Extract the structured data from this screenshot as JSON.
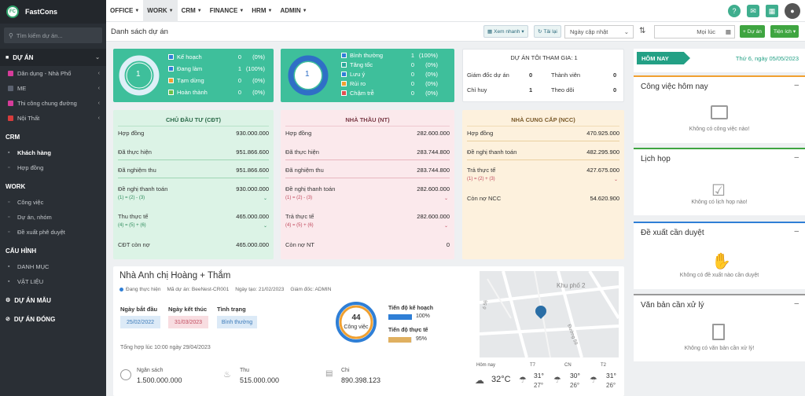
{
  "app": {
    "name": "FastCons",
    "logo": "FC"
  },
  "sidebar": {
    "search_placeholder": "Tìm kiếm dự án...",
    "sections": [
      {
        "label": "DỰ ÁN",
        "icon": "folder-icon"
      },
      {
        "label": "CRM"
      },
      {
        "label": "WORK"
      },
      {
        "label": "CẤU HÌNH"
      }
    ],
    "projects": [
      {
        "label": "Dân dụng - Nhà Phố",
        "color": "#d63c9a"
      },
      {
        "label": "ME",
        "color": "#5b6270"
      },
      {
        "label": "Thi công chung đường",
        "color": "#d63c9a"
      },
      {
        "label": "Nội Thất",
        "color": "#d63c3c"
      }
    ],
    "crm": [
      {
        "label": "Khách hàng"
      },
      {
        "label": "Hợp đồng"
      }
    ],
    "work": [
      {
        "label": "Công việc"
      },
      {
        "label": "Dự án, nhóm"
      },
      {
        "label": "Đề xuất phê duyệt"
      }
    ],
    "config": [
      {
        "label": "DANH MỤC"
      },
      {
        "label": "VẬT LIỆU"
      }
    ],
    "bottom": [
      {
        "label": "DỰ ÁN MẪU"
      },
      {
        "label": "DỰ ÁN ĐÓNG"
      }
    ]
  },
  "topmenu": [
    "OFFICE",
    "WORK",
    "CRM",
    "FINANCE",
    "HRM",
    "ADMIN"
  ],
  "subbar": {
    "title": "Danh sách dự án",
    "quick_view": "Xem nhanh",
    "reload": "Tải lại",
    "sort_select": "Ngày cập nhật",
    "time_select": "Mọi lúc",
    "add_project": "Dự án",
    "utilities": "Tiện ích"
  },
  "status1": {
    "count": "1",
    "rows": [
      {
        "label": "Kế hoạch",
        "value": "0",
        "pct": "(0%)",
        "color": "#2f7fd6"
      },
      {
        "label": "Đang làm",
        "value": "1",
        "pct": "(100%)",
        "color": "#2f7fd6"
      },
      {
        "label": "Tạm dừng",
        "value": "0",
        "pct": "(0%)",
        "color": "#f0a030"
      },
      {
        "label": "Hoàn thành",
        "value": "0",
        "pct": "(0%)",
        "color": "#6ac24a"
      }
    ]
  },
  "status2": {
    "count": "1",
    "rows": [
      {
        "label": "Bình thường",
        "value": "1",
        "pct": "(100%)",
        "color": "#2f7fd6"
      },
      {
        "label": "Tăng tốc",
        "value": "0",
        "pct": "(0%)",
        "color": "#2aa89a"
      },
      {
        "label": "Lưu ý",
        "value": "0",
        "pct": "(0%)",
        "color": "#2f7fd6"
      },
      {
        "label": "Rủi ro",
        "value": "0",
        "pct": "(0%)",
        "color": "#f0a030"
      },
      {
        "label": "Chậm trễ",
        "value": "0",
        "pct": "(0%)",
        "color": "#e05050"
      }
    ]
  },
  "participation": {
    "title": "DỰ ÁN TÔI THAM GIA: 1",
    "rows": [
      {
        "label": "Giám đốc dự án",
        "value": "0",
        "label2": "Thành viên",
        "value2": "0"
      },
      {
        "label": "Chỉ huy",
        "value": "1",
        "label2": "Theo dõi",
        "value2": "0"
      }
    ]
  },
  "cdt": {
    "title": "CHỦ ĐẦU TƯ (CĐT)",
    "rows": [
      {
        "label": "Hợp đồng",
        "value": "930.000.000"
      },
      {
        "label": "Đã thực hiện",
        "value": "951.866.600"
      },
      {
        "label": "Đã nghiệm thu",
        "value": "951.866.600"
      },
      {
        "label": "Đề nghị thanh toán",
        "value": "930.000.000",
        "formula": "(1) = (2) - (3)"
      },
      {
        "label": "Thu thực tế",
        "value": "465.000.000",
        "formula": "(4) = (5) + (6)"
      },
      {
        "label": "CĐT còn nợ",
        "value": "465.000.000"
      }
    ]
  },
  "nt": {
    "title": "NHÀ THẦU (NT)",
    "rows": [
      {
        "label": "Hợp đồng",
        "value": "282.600.000"
      },
      {
        "label": "Đã thực hiện",
        "value": "283.744.800"
      },
      {
        "label": "Đã nghiệm thu",
        "value": "283.744.800"
      },
      {
        "label": "Đề nghị thanh toán",
        "value": "282.600.000",
        "formula": "(1) = (2) - (3)"
      },
      {
        "label": "Trả thực tế",
        "value": "282.600.000",
        "formula": "(4) = (5) + (6)"
      },
      {
        "label": "Còn nợ NT",
        "value": "0"
      }
    ]
  },
  "ncc": {
    "title": "NHÀ CUNG CẤP (NCC)",
    "rows": [
      {
        "label": "Hợp đồng",
        "value": "470.925.000"
      },
      {
        "label": "Đề nghị thanh toán",
        "value": "482.295.900"
      },
      {
        "label": "Trả thực tế",
        "value": "427.675.000",
        "formula": "(1) = (2) + (3)"
      },
      {
        "label": "Còn nợ NCC",
        "value": "54.620.900"
      }
    ]
  },
  "project": {
    "name": "Nhà Anh chị Hoàng + Thắm",
    "status": "Đang thực hiện",
    "code_label": "Mã dự án: BeeNest-CR001",
    "created_label": "Ngày tạo: 21/02/2023",
    "director_label": "Giám đốc: ADMIN",
    "start_label": "Ngày bắt đầu",
    "start": "25/02/2022",
    "end_label": "Ngày kết thúc",
    "end": "31/03/2023",
    "state_label": "Tình trạng",
    "state": "Bình thường",
    "summary_time": "Tổng hợp lúc 10:00 ngày 29/04/2023",
    "tasks_count": "44",
    "tasks_label": "Công việc",
    "plan_label": "Tiến độ kế hoạch",
    "plan_pct": "100%",
    "plan_value": 100,
    "actual_label": "Tiến độ thực tế",
    "actual_pct": "95%",
    "actual_value": 95,
    "budget_label": "Ngân sách",
    "budget": "1.500.000.000",
    "income_label": "Thu",
    "income": "515.000.000",
    "expense_label": "Chi",
    "expense": "890.398.123"
  },
  "map": {
    "labels": [
      "Khu phố 2",
      "Đường 59",
      "ố 56"
    ]
  },
  "weather": {
    "days": [
      {
        "label": "Hôm nay",
        "temp": "32°C"
      },
      {
        "label": "T7",
        "high": "31°",
        "low": "27°"
      },
      {
        "label": "CN",
        "high": "30°",
        "low": "26°"
      },
      {
        "label": "T2",
        "high": "31°",
        "low": "26°"
      }
    ]
  },
  "today": {
    "title": "HÔM NAY",
    "date": "Thứ 6, ngày 05/05/2023"
  },
  "panels": [
    {
      "title": "Công việc hôm nay",
      "empty": "Không có công việc nào!",
      "color": "#f0a030"
    },
    {
      "title": "Lịch họp",
      "empty": "Không có lịch họp nào!",
      "color": "#3fa541"
    },
    {
      "title": "Đề xuất cần duyệt",
      "empty": "Không có đề xuất nào cần duyệt",
      "color": "#2f7fd6"
    },
    {
      "title": "Văn bản cần xử lý",
      "empty": "Không có văn bản cần xử lý!",
      "color": "#999999"
    }
  ]
}
